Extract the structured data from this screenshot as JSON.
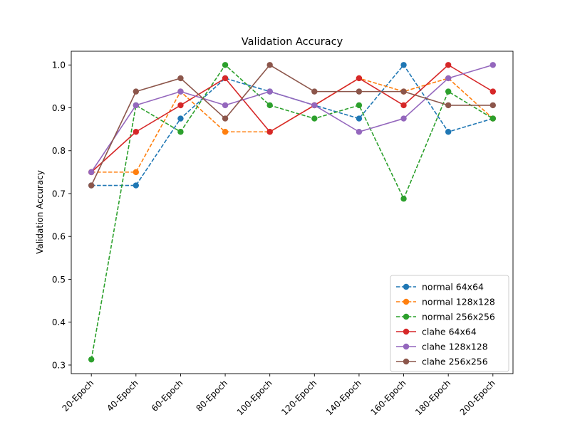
{
  "chart_data": {
    "type": "line",
    "title": "Validation Accuracy",
    "xlabel": "",
    "ylabel": "Validation Accuracy",
    "categories": [
      "20-Epoch",
      "40-Epoch",
      "60-Epoch",
      "80-Epoch",
      "100-Epoch",
      "120-Epoch",
      "140-Epoch",
      "160-Epoch",
      "180-Epoch",
      "200-Epoch"
    ],
    "ylim": [
      0.28,
      1.032
    ],
    "yticks": [
      "0.3",
      "0.4",
      "0.5",
      "0.6",
      "0.7",
      "0.8",
      "0.9",
      "1.0"
    ],
    "grid": false,
    "legend_position": "lower-right",
    "series": [
      {
        "name": "normal 64x64",
        "color": "#1f77b4",
        "dash": "dashed",
        "values": [
          0.719,
          0.719,
          0.875,
          0.969,
          0.938,
          0.906,
          0.875,
          1.0,
          0.844,
          0.875
        ]
      },
      {
        "name": "normal 128x128",
        "color": "#ff7f0e",
        "dash": "dashed",
        "values": [
          0.75,
          0.75,
          0.938,
          0.844,
          0.844,
          0.906,
          0.969,
          0.938,
          0.969,
          0.875
        ]
      },
      {
        "name": "normal 256x256",
        "color": "#2ca02c",
        "dash": "dashed",
        "values": [
          0.313,
          0.906,
          0.844,
          1.0,
          0.906,
          0.875,
          0.906,
          0.688,
          0.938,
          0.875
        ]
      },
      {
        "name": "clahe 64x64",
        "color": "#d62728",
        "dash": "solid",
        "values": [
          0.75,
          0.844,
          0.906,
          0.969,
          0.844,
          0.906,
          0.969,
          0.906,
          1.0,
          0.938
        ]
      },
      {
        "name": "clahe 128x128",
        "color": "#9467bd",
        "dash": "solid",
        "values": [
          0.75,
          0.906,
          0.938,
          0.906,
          0.938,
          0.906,
          0.844,
          0.875,
          0.969,
          1.0
        ]
      },
      {
        "name": "clahe 256x256",
        "color": "#8c564b",
        "dash": "solid",
        "values": [
          0.719,
          0.938,
          0.969,
          0.875,
          1.0,
          0.938,
          0.938,
          0.938,
          0.906,
          0.906
        ]
      }
    ]
  }
}
